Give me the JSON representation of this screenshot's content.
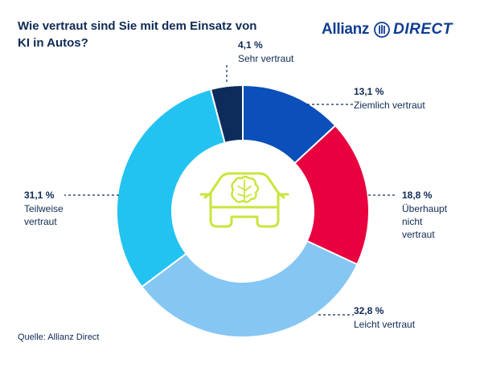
{
  "title": "Wie vertraut sind Sie mit dem Einsatz von KI in Autos?",
  "source": "Quelle: Allianz Direct",
  "logo": {
    "word": "Allianz",
    "product": "DIRECT"
  },
  "chart_data": {
    "type": "pie",
    "variant": "donut",
    "title": "Wie vertraut sind Sie mit dem Einsatz von KI in Autos?",
    "center_icon": "car-ai-brain-icon",
    "slices": [
      {
        "label": "Sehr vertraut",
        "value_label": "4,1 %",
        "value": 4.1,
        "color": "#0d2c5c",
        "label_lines": [
          "Sehr vertraut"
        ]
      },
      {
        "label": "Ziemlich vertraut",
        "value_label": "13,1 %",
        "value": 13.1,
        "color": "#0a4fba",
        "label_lines": [
          "Ziemlich vertraut"
        ]
      },
      {
        "label": "Überhaupt nicht vertraut",
        "value_label": "18,8 %",
        "value": 18.8,
        "color": "#e8003f",
        "label_lines": [
          "Überhaupt",
          "nicht",
          "vertraut"
        ]
      },
      {
        "label": "Leicht vertraut",
        "value_label": "32,8 %",
        "value": 32.8,
        "color": "#86c6f3",
        "label_lines": [
          "Leicht vertraut"
        ]
      },
      {
        "label": "Teilweise vertraut",
        "value_label": "31,1 %",
        "value": 31.1,
        "color": "#22c3f0",
        "label_lines": [
          "Teilweise",
          "vertraut"
        ]
      }
    ]
  }
}
